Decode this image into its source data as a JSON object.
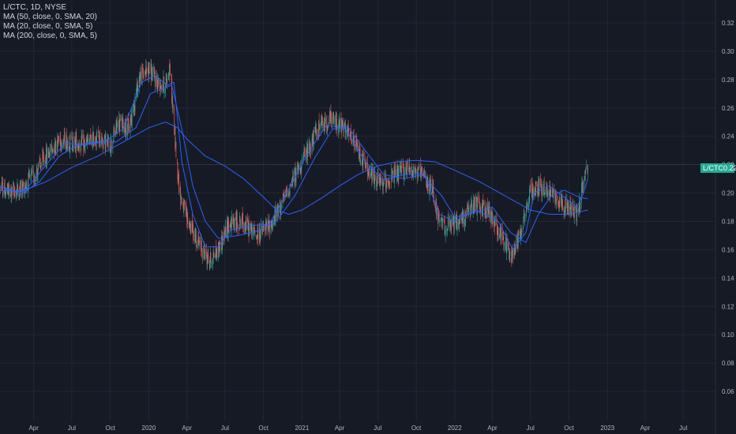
{
  "legend": {
    "symbol_line": "L/CTC, 1D, NYSE",
    "ma1": "MA (50, close, 0, SMA, 20)",
    "ma2": "MA (20, close, 0, SMA, 5)",
    "ma3": "MA (200, close, 0, SMA, 5)"
  },
  "price_badge": {
    "symbol": "L/CTC",
    "value": "0.22"
  },
  "colors": {
    "background": "#161a25",
    "grid": "#232733",
    "up": "#26a69a",
    "down": "#ef5350",
    "ma": "#2962ff",
    "badge": "#22ab94",
    "axis_text": "#b2b5be"
  },
  "chart_data": {
    "type": "candlestick",
    "title": "L/CTC, 1D, NYSE",
    "x_tick_labels": [
      "Apr",
      "Jul",
      "Oct",
      "2020",
      "Apr",
      "Jul",
      "Oct",
      "2021",
      "Apr",
      "Jul",
      "Oct",
      "2022",
      "Apr",
      "Jul",
      "Oct",
      "2023",
      "Apr",
      "Jul"
    ],
    "x_range": [
      "2019-01-01",
      "2023-08-15"
    ],
    "y_tick_labels": [
      "0.06",
      "0.08",
      "0.10",
      "0.12",
      "0.14",
      "0.16",
      "0.18",
      "0.20",
      "0.22",
      "0.24",
      "0.26",
      "0.28",
      "0.30",
      "0.32"
    ],
    "ylim": [
      0.045,
      0.33
    ],
    "last_price": 0.22,
    "grid": true,
    "price_path": [
      [
        "2019-01-01",
        0.206
      ],
      [
        "2019-02-01",
        0.2
      ],
      [
        "2019-03-01",
        0.203
      ],
      [
        "2019-04-01",
        0.212
      ],
      [
        "2019-05-01",
        0.226
      ],
      [
        "2019-06-01",
        0.238
      ],
      [
        "2019-07-01",
        0.236
      ],
      [
        "2019-08-01",
        0.234
      ],
      [
        "2019-09-01",
        0.24
      ],
      [
        "2019-10-01",
        0.233
      ],
      [
        "2019-10-20",
        0.25
      ],
      [
        "2019-11-15",
        0.246
      ],
      [
        "2019-12-10",
        0.282
      ],
      [
        "2020-01-01",
        0.288
      ],
      [
        "2020-01-20",
        0.278
      ],
      [
        "2020-02-10",
        0.276
      ],
      [
        "2020-02-20",
        0.29
      ],
      [
        "2020-03-05",
        0.232
      ],
      [
        "2020-03-15",
        0.2
      ],
      [
        "2020-04-01",
        0.182
      ],
      [
        "2020-05-01",
        0.163
      ],
      [
        "2020-05-25",
        0.152
      ],
      [
        "2020-06-15",
        0.16
      ],
      [
        "2020-07-10",
        0.178
      ],
      [
        "2020-08-10",
        0.18
      ],
      [
        "2020-09-15",
        0.17
      ],
      [
        "2020-10-20",
        0.178
      ],
      [
        "2020-11-20",
        0.196
      ],
      [
        "2020-12-15",
        0.212
      ],
      [
        "2021-01-15",
        0.23
      ],
      [
        "2021-02-10",
        0.246
      ],
      [
        "2021-03-10",
        0.252
      ],
      [
        "2021-04-10",
        0.246
      ],
      [
        "2021-05-10",
        0.233
      ],
      [
        "2021-06-10",
        0.214
      ],
      [
        "2021-07-10",
        0.206
      ],
      [
        "2021-08-10",
        0.212
      ],
      [
        "2021-09-15",
        0.218
      ],
      [
        "2021-10-15",
        0.212
      ],
      [
        "2021-11-10",
        0.202
      ],
      [
        "2021-11-25",
        0.178
      ],
      [
        "2021-12-20",
        0.176
      ],
      [
        "2022-01-20",
        0.182
      ],
      [
        "2022-02-20",
        0.192
      ],
      [
        "2022-03-20",
        0.188
      ],
      [
        "2022-04-20",
        0.172
      ],
      [
        "2022-05-15",
        0.155
      ],
      [
        "2022-06-10",
        0.176
      ],
      [
        "2022-06-30",
        0.2
      ],
      [
        "2022-07-20",
        0.205
      ],
      [
        "2022-08-20",
        0.2
      ],
      [
        "2022-09-20",
        0.192
      ],
      [
        "2022-10-20",
        0.185
      ],
      [
        "2022-11-01",
        0.202
      ],
      [
        "2022-11-15",
        0.22
      ]
    ],
    "series": [
      {
        "name": "MA (50, close, 0, SMA, 20)",
        "points": [
          [
            "2019-01-01",
            0.202
          ],
          [
            "2019-03-01",
            0.201
          ],
          [
            "2019-05-01",
            0.208
          ],
          [
            "2019-07-01",
            0.218
          ],
          [
            "2019-09-01",
            0.226
          ],
          [
            "2019-11-01",
            0.236
          ],
          [
            "2020-01-01",
            0.246
          ],
          [
            "2020-02-10",
            0.25
          ],
          [
            "2020-03-10",
            0.246
          ],
          [
            "2020-04-01",
            0.238
          ],
          [
            "2020-05-15",
            0.226
          ],
          [
            "2020-07-01",
            0.219
          ],
          [
            "2020-08-15",
            0.21
          ],
          [
            "2020-10-01",
            0.197
          ],
          [
            "2020-11-01",
            0.188
          ],
          [
            "2020-12-01",
            0.185
          ],
          [
            "2021-01-01",
            0.188
          ],
          [
            "2021-02-15",
            0.196
          ],
          [
            "2021-04-01",
            0.205
          ],
          [
            "2021-05-15",
            0.213
          ],
          [
            "2021-07-01",
            0.219
          ],
          [
            "2021-08-15",
            0.222
          ],
          [
            "2021-10-01",
            0.223
          ],
          [
            "2021-11-15",
            0.222
          ],
          [
            "2022-01-01",
            0.216
          ],
          [
            "2022-03-01",
            0.208
          ],
          [
            "2022-05-01",
            0.198
          ],
          [
            "2022-07-01",
            0.188
          ],
          [
            "2022-08-15",
            0.185
          ],
          [
            "2022-10-01",
            0.185
          ],
          [
            "2022-11-15",
            0.188
          ]
        ]
      },
      {
        "name": "MA (20, close, 0, SMA, 5)",
        "points": [
          [
            "2019-01-01",
            0.206
          ],
          [
            "2019-03-01",
            0.199
          ],
          [
            "2019-04-15",
            0.208
          ],
          [
            "2019-06-01",
            0.226
          ],
          [
            "2019-07-15",
            0.234
          ],
          [
            "2019-09-01",
            0.236
          ],
          [
            "2019-10-15",
            0.236
          ],
          [
            "2019-12-01",
            0.246
          ],
          [
            "2020-01-05",
            0.27
          ],
          [
            "2020-02-05",
            0.274
          ],
          [
            "2020-02-25",
            0.276
          ],
          [
            "2020-03-20",
            0.245
          ],
          [
            "2020-04-15",
            0.205
          ],
          [
            "2020-05-15",
            0.18
          ],
          [
            "2020-06-15",
            0.168
          ],
          [
            "2020-08-01",
            0.17
          ],
          [
            "2020-09-15",
            0.173
          ],
          [
            "2020-11-01",
            0.18
          ],
          [
            "2020-12-15",
            0.198
          ],
          [
            "2021-02-01",
            0.225
          ],
          [
            "2021-03-15",
            0.245
          ],
          [
            "2021-04-20",
            0.247
          ],
          [
            "2021-06-01",
            0.23
          ],
          [
            "2021-07-15",
            0.213
          ],
          [
            "2021-09-01",
            0.21
          ],
          [
            "2021-10-15",
            0.213
          ],
          [
            "2021-12-01",
            0.198
          ],
          [
            "2022-01-01",
            0.183
          ],
          [
            "2022-02-15",
            0.186
          ],
          [
            "2022-04-01",
            0.19
          ],
          [
            "2022-05-15",
            0.172
          ],
          [
            "2022-06-20",
            0.165
          ],
          [
            "2022-07-20",
            0.185
          ],
          [
            "2022-08-20",
            0.198
          ],
          [
            "2022-09-20",
            0.202
          ],
          [
            "2022-10-25",
            0.197
          ],
          [
            "2022-11-15",
            0.196
          ]
        ]
      },
      {
        "name": "MA (200, close, 0, SMA, 5)",
        "points": [
          [
            "2019-01-01",
            0.206
          ],
          [
            "2019-02-15",
            0.201
          ],
          [
            "2019-03-15",
            0.203
          ],
          [
            "2019-05-01",
            0.22
          ],
          [
            "2019-06-15",
            0.235
          ],
          [
            "2019-08-01",
            0.234
          ],
          [
            "2019-09-15",
            0.236
          ],
          [
            "2019-11-01",
            0.245
          ],
          [
            "2019-12-15",
            0.278
          ],
          [
            "2020-01-15",
            0.283
          ],
          [
            "2020-02-15",
            0.276
          ],
          [
            "2020-03-01",
            0.278
          ],
          [
            "2020-03-20",
            0.222
          ],
          [
            "2020-04-15",
            0.185
          ],
          [
            "2020-05-15",
            0.162
          ],
          [
            "2020-06-15",
            0.162
          ],
          [
            "2020-07-15",
            0.174
          ],
          [
            "2020-09-01",
            0.177
          ],
          [
            "2020-10-15",
            0.178
          ],
          [
            "2020-12-01",
            0.203
          ],
          [
            "2021-01-15",
            0.228
          ],
          [
            "2021-03-01",
            0.248
          ],
          [
            "2021-04-15",
            0.245
          ],
          [
            "2021-06-01",
            0.222
          ],
          [
            "2021-07-15",
            0.209
          ],
          [
            "2021-09-01",
            0.213
          ],
          [
            "2021-10-20",
            0.214
          ],
          [
            "2021-11-25",
            0.185
          ],
          [
            "2022-01-01",
            0.18
          ],
          [
            "2022-02-20",
            0.188
          ],
          [
            "2022-04-15",
            0.18
          ],
          [
            "2022-05-20",
            0.16
          ],
          [
            "2022-06-20",
            0.172
          ],
          [
            "2022-07-10",
            0.2
          ],
          [
            "2022-08-15",
            0.205
          ],
          [
            "2022-09-15",
            0.198
          ],
          [
            "2022-10-20",
            0.19
          ],
          [
            "2022-11-05",
            0.2
          ],
          [
            "2022-11-15",
            0.21
          ]
        ]
      }
    ]
  }
}
